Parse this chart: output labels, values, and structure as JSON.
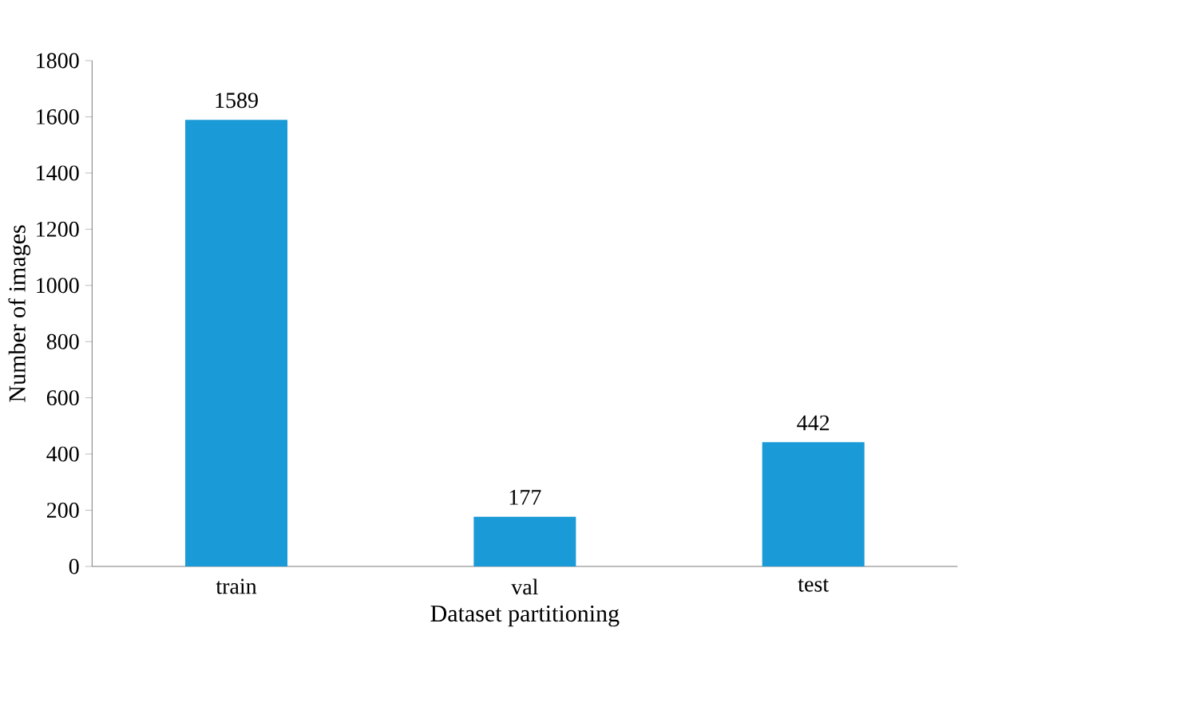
{
  "chart_data": {
    "type": "bar",
    "xlabel": "Dataset partitioning",
    "ylabel": "Number of images",
    "categories": [
      "train",
      "val",
      "test"
    ],
    "values": [
      1589,
      177,
      442
    ],
    "color": "#1a9ad6",
    "ylim": [
      0,
      1800
    ],
    "yticks": [
      0,
      200,
      400,
      600,
      800,
      1000,
      1200,
      1400,
      1600,
      1800
    ],
    "data_labels": true
  }
}
